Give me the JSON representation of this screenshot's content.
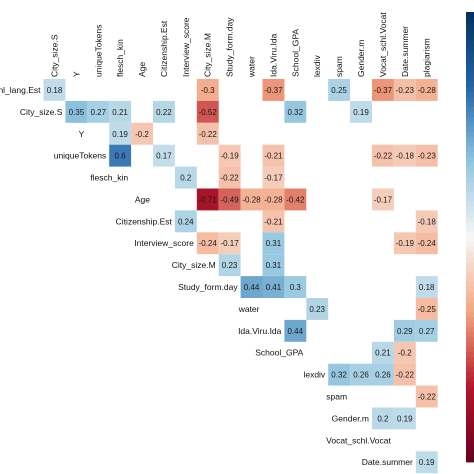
{
  "chart_data": {
    "type": "heatmap",
    "title": "",
    "xlabel": "",
    "ylabel": "",
    "layout": "upper-triangular correlation matrix, column labels on top, row labels on the diagonal",
    "color_scale": {
      "range": [
        -1,
        1
      ],
      "negative_color": "#67001f",
      "neutral_color": "#f7f7f7",
      "positive_color": "#053061",
      "colorbar": "right"
    },
    "columns": [
      "City_size.S",
      "Y",
      "uniqueTokens",
      "flesch_kin",
      "Age",
      "Citizenship.Est",
      "Interview_score",
      "City_size.M",
      "Study_form.day",
      "water",
      "Ida.Viru.Ida",
      "School_GPA",
      "lexdiv",
      "spam",
      "Gender.m",
      "Vocat_schl.Vocat",
      "Date.summer",
      "plagiarism"
    ],
    "rows": [
      "Instruction_lang.Est",
      "City_size.S",
      "Y",
      "uniqueTokens",
      "flesch_kin",
      "Age",
      "Citizenship.Est",
      "Interview_score",
      "City_size.M",
      "Study_form.day",
      "water",
      "Ida.Viru.Ida",
      "School_GPA",
      "lexdiv",
      "spam",
      "Gender.m",
      "Vocat_schl.Vocat",
      "Date.summer"
    ],
    "row_label_visible_text": [
      "nl_lang.Est",
      "City_size.S",
      "Y",
      "uniqueTokens",
      "flesch_kin",
      "Age",
      "Citizenship.Est",
      "Interview_score",
      "City_size.M",
      "Study_form.day",
      "water",
      "Ida.Viru.Ida",
      "School_GPA",
      "lexdiv",
      "spam",
      "Gender.m",
      "Vocat_schl.Vocat",
      "Date.summer"
    ],
    "cells": [
      {
        "row": 0,
        "col": 0,
        "value": 0.18
      },
      {
        "row": 0,
        "col": 7,
        "value": -0.3
      },
      {
        "row": 0,
        "col": 10,
        "value": -0.37
      },
      {
        "row": 0,
        "col": 13,
        "value": 0.25
      },
      {
        "row": 0,
        "col": 15,
        "value": -0.37
      },
      {
        "row": 0,
        "col": 16,
        "value": -0.23
      },
      {
        "row": 0,
        "col": 17,
        "value": -0.28
      },
      {
        "row": 1,
        "col": 1,
        "value": 0.35
      },
      {
        "row": 1,
        "col": 2,
        "value": 0.27
      },
      {
        "row": 1,
        "col": 3,
        "value": 0.21
      },
      {
        "row": 1,
        "col": 5,
        "value": 0.22
      },
      {
        "row": 1,
        "col": 7,
        "value": -0.52
      },
      {
        "row": 1,
        "col": 11,
        "value": 0.32
      },
      {
        "row": 1,
        "col": 14,
        "value": 0.19
      },
      {
        "row": 2,
        "col": 3,
        "value": 0.19
      },
      {
        "row": 2,
        "col": 4,
        "value": -0.2
      },
      {
        "row": 2,
        "col": 7,
        "value": -0.22
      },
      {
        "row": 3,
        "col": 3,
        "value": 0.6
      },
      {
        "row": 3,
        "col": 5,
        "value": 0.17
      },
      {
        "row": 3,
        "col": 8,
        "value": -0.19
      },
      {
        "row": 3,
        "col": 10,
        "value": -0.21
      },
      {
        "row": 3,
        "col": 15,
        "value": -0.22
      },
      {
        "row": 3,
        "col": 16,
        "value": -0.18
      },
      {
        "row": 3,
        "col": 17,
        "value": -0.23
      },
      {
        "row": 4,
        "col": 6,
        "value": 0.2
      },
      {
        "row": 4,
        "col": 8,
        "value": -0.22
      },
      {
        "row": 4,
        "col": 10,
        "value": -0.17
      },
      {
        "row": 5,
        "col": 7,
        "value": -0.71
      },
      {
        "row": 5,
        "col": 8,
        "value": -0.49
      },
      {
        "row": 5,
        "col": 9,
        "value": -0.28
      },
      {
        "row": 5,
        "col": 10,
        "value": -0.28
      },
      {
        "row": 5,
        "col": 11,
        "value": -0.42
      },
      {
        "row": 5,
        "col": 15,
        "value": -0.17
      },
      {
        "row": 6,
        "col": 6,
        "value": 0.24
      },
      {
        "row": 6,
        "col": 10,
        "value": -0.21
      },
      {
        "row": 6,
        "col": 17,
        "value": -0.18
      },
      {
        "row": 7,
        "col": 7,
        "value": -0.24
      },
      {
        "row": 7,
        "col": 8,
        "value": -0.17
      },
      {
        "row": 7,
        "col": 10,
        "value": 0.31
      },
      {
        "row": 7,
        "col": 16,
        "value": -0.19
      },
      {
        "row": 7,
        "col": 17,
        "value": -0.24
      },
      {
        "row": 8,
        "col": 8,
        "value": 0.23
      },
      {
        "row": 8,
        "col": 10,
        "value": 0.31
      },
      {
        "row": 9,
        "col": 9,
        "value": 0.44
      },
      {
        "row": 9,
        "col": 10,
        "value": 0.41
      },
      {
        "row": 9,
        "col": 11,
        "value": 0.3
      },
      {
        "row": 9,
        "col": 17,
        "value": 0.18
      },
      {
        "row": 10,
        "col": 12,
        "value": 0.23
      },
      {
        "row": 10,
        "col": 17,
        "value": -0.25
      },
      {
        "row": 11,
        "col": 11,
        "value": 0.44
      },
      {
        "row": 11,
        "col": 16,
        "value": 0.29
      },
      {
        "row": 11,
        "col": 17,
        "value": 0.27
      },
      {
        "row": 12,
        "col": 15,
        "value": 0.21
      },
      {
        "row": 12,
        "col": 16,
        "value": -0.2
      },
      {
        "row": 13,
        "col": 13,
        "value": 0.32
      },
      {
        "row": 13,
        "col": 14,
        "value": 0.26
      },
      {
        "row": 13,
        "col": 15,
        "value": 0.26
      },
      {
        "row": 13,
        "col": 16,
        "value": -0.22
      },
      {
        "row": 14,
        "col": 17,
        "value": -0.22
      },
      {
        "row": 15,
        "col": 15,
        "value": 0.2
      },
      {
        "row": 15,
        "col": 16,
        "value": 0.19
      },
      {
        "row": 17,
        "col": 17,
        "value": 0.19
      }
    ]
  }
}
